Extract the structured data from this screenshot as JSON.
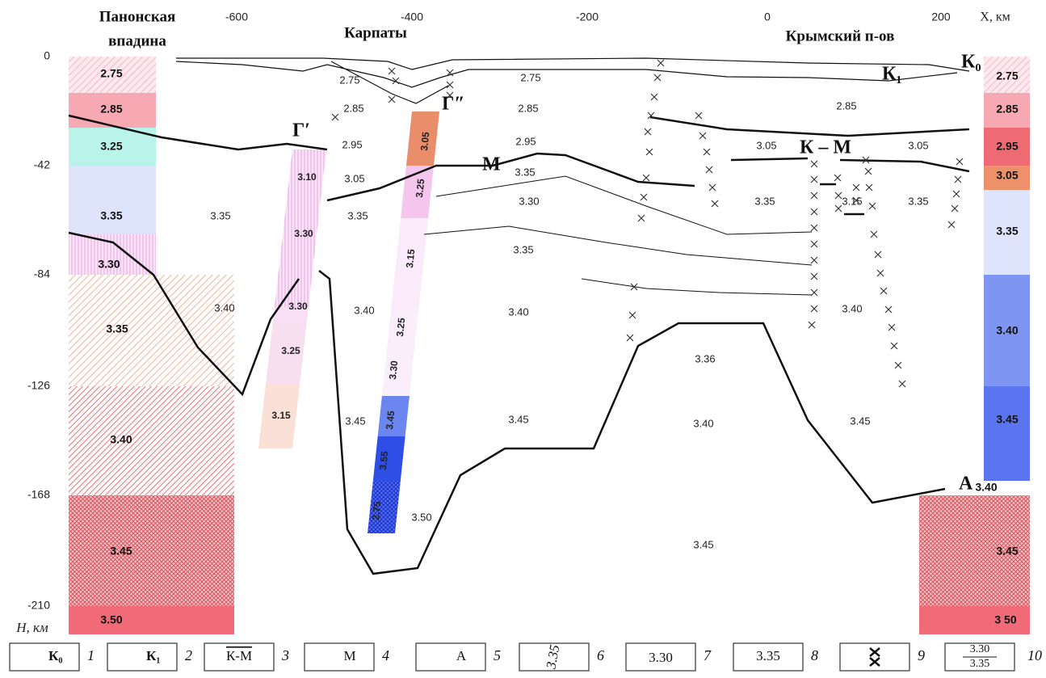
{
  "axes": {
    "x_ticks": [
      "-600",
      "-400",
      "-200",
      "0",
      "200"
    ],
    "x_unit": "X, км",
    "y_ticks": [
      "0",
      "-42",
      "-84",
      "-126",
      "-168",
      "-210"
    ],
    "y_unit": "H, км"
  },
  "regions": [
    "Панонская",
    "впадина",
    "Карпаты",
    "Крымский п-ов"
  ],
  "boundaries": [
    "К₀",
    "К₁",
    "Г′",
    "Г″",
    "М",
    "К – М",
    "А"
  ],
  "left_column": [
    "2.75",
    "2.85",
    "3.25",
    "3.35",
    "3.30",
    "3.35",
    "3.40",
    "3.45",
    "3.50"
  ],
  "right_column": [
    "2.75",
    "2.85",
    "2.95",
    "3.05",
    "3.35",
    "3.40",
    "3.45",
    "3.40",
    "3.45",
    "3 50"
  ],
  "section_labels": [
    "2.75",
    "2.75",
    "2.85",
    "2.85",
    "2.85",
    "2.95",
    "2.95",
    "3.05",
    "3.05",
    "3.05",
    "3.35",
    "3.35",
    "3.35",
    "3.30",
    "3.35",
    "3.15",
    "3.35",
    "3.35",
    "3.40",
    "3.40",
    "3.40",
    "3.40",
    "3.36",
    "3.45",
    "3.45",
    "3.40",
    "3.45",
    "3.50",
    "3.45"
  ],
  "strip_g1": [
    "3.10",
    "3.30",
    "3.30",
    "3.25",
    "3.15"
  ],
  "strip_g2": [
    "3.05",
    "3.25",
    "3.15",
    "3.25",
    "3.30",
    "3.45",
    "3.55",
    "2.75"
  ],
  "legend": [
    {
      "label": "К₀",
      "number": "1"
    },
    {
      "label": "К₁",
      "number": "2"
    },
    {
      "label": "К-М",
      "number": "3"
    },
    {
      "label": "М",
      "number": "4"
    },
    {
      "label": "А",
      "number": "5"
    },
    {
      "label": "3.35",
      "number": "6"
    },
    {
      "label": "3.30",
      "number": "7"
    },
    {
      "label": "3.35",
      "number": "8"
    },
    {
      "number": "9"
    },
    {
      "numerator": "3.30",
      "denominator": "3.35",
      "number": "10"
    }
  ]
}
